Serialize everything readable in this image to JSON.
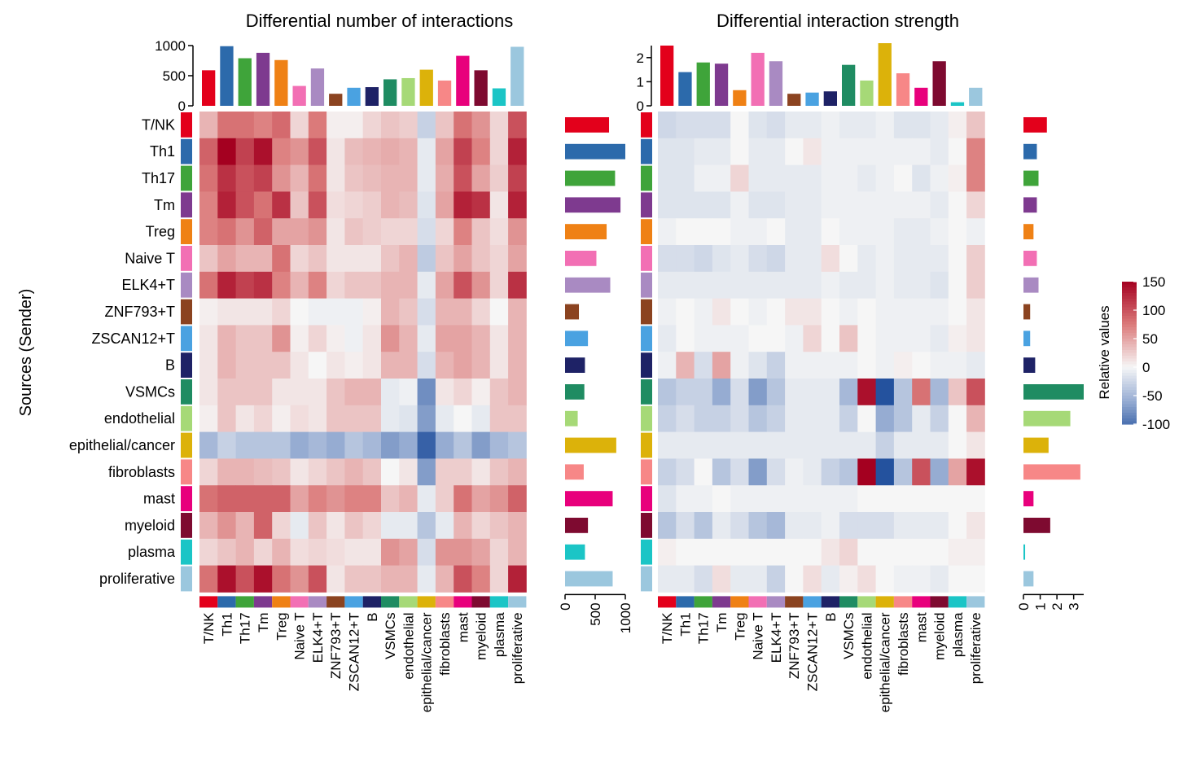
{
  "chart_data": [
    {
      "type": "heatmap",
      "title": "Differential number of interactions",
      "cell_types": [
        "T/NK",
        "Th1",
        "Th17",
        "Tm",
        "Treg",
        "Naive T",
        "ELK4+T",
        "ZNF793+T",
        "ZSCAN12+T",
        "B",
        "VSMCs",
        "endothelial",
        "epithelial/cancer",
        "fibroblasts",
        "mast",
        "myeloid",
        "plasma",
        "proliferative"
      ],
      "col_totals": [
        590,
        990,
        790,
        880,
        760,
        330,
        620,
        200,
        300,
        310,
        440,
        460,
        600,
        420,
        830,
        590,
        290,
        980
      ],
      "row_totals": [
        730,
        1000,
        830,
        920,
        690,
        520,
        750,
        230,
        380,
        330,
        320,
        210,
        850,
        310,
        790,
        380,
        330,
        790
      ],
      "top_axis_ticks": [
        "0",
        "500",
        "1000"
      ],
      "top_axis_max": 1000,
      "right_axis_ticks": [
        "0",
        "500",
        "1000"
      ],
      "right_axis_max": 1000,
      "values": [
        [
          40,
          80,
          80,
          70,
          85,
          20,
          75,
          5,
          5,
          20,
          30,
          25,
          -30,
          30,
          80,
          60,
          20,
          100
        ],
        [
          90,
          150,
          110,
          140,
          70,
          60,
          100,
          10,
          35,
          40,
          45,
          40,
          -10,
          50,
          110,
          70,
          20,
          130
        ],
        [
          80,
          120,
          100,
          110,
          60,
          40,
          80,
          10,
          30,
          35,
          40,
          40,
          -10,
          45,
          100,
          50,
          25,
          110
        ],
        [
          70,
          130,
          100,
          80,
          120,
          30,
          100,
          15,
          20,
          25,
          40,
          35,
          -15,
          50,
          130,
          120,
          10,
          130
        ],
        [
          70,
          80,
          60,
          90,
          50,
          50,
          60,
          10,
          30,
          25,
          20,
          20,
          -20,
          20,
          70,
          30,
          15,
          60
        ],
        [
          30,
          50,
          40,
          40,
          80,
          20,
          30,
          10,
          10,
          10,
          30,
          40,
          -35,
          30,
          50,
          30,
          20,
          50
        ],
        [
          80,
          130,
          110,
          120,
          70,
          40,
          70,
          20,
          30,
          30,
          40,
          40,
          -10,
          50,
          100,
          60,
          20,
          120
        ],
        [
          5,
          10,
          10,
          10,
          20,
          0,
          -5,
          -5,
          -5,
          5,
          40,
          30,
          -20,
          40,
          40,
          20,
          0,
          40
        ],
        [
          10,
          40,
          30,
          30,
          60,
          5,
          20,
          5,
          -5,
          10,
          60,
          40,
          -10,
          50,
          50,
          40,
          10,
          40
        ],
        [
          10,
          40,
          30,
          30,
          30,
          10,
          0,
          10,
          5,
          10,
          40,
          40,
          -20,
          40,
          50,
          40,
          10,
          40
        ],
        [
          10,
          30,
          30,
          30,
          10,
          10,
          10,
          30,
          40,
          40,
          -10,
          -5,
          -80,
          10,
          20,
          5,
          30,
          40
        ],
        [
          5,
          30,
          10,
          20,
          5,
          15,
          10,
          30,
          30,
          30,
          -10,
          -15,
          -70,
          -10,
          0,
          -10,
          30,
          30
        ],
        [
          -50,
          -30,
          -40,
          -40,
          -40,
          -60,
          -50,
          -60,
          -40,
          -50,
          -70,
          -60,
          -110,
          -60,
          -40,
          -70,
          -50,
          -40
        ],
        [
          20,
          40,
          40,
          35,
          30,
          10,
          20,
          30,
          40,
          30,
          0,
          10,
          -70,
          25,
          25,
          10,
          30,
          40
        ],
        [
          80,
          90,
          90,
          90,
          90,
          50,
          70,
          60,
          70,
          70,
          30,
          40,
          -10,
          25,
          80,
          50,
          60,
          90
        ],
        [
          40,
          60,
          40,
          90,
          20,
          -10,
          30,
          10,
          30,
          20,
          -10,
          -10,
          -40,
          -10,
          40,
          20,
          30,
          40
        ],
        [
          20,
          30,
          40,
          20,
          40,
          15,
          20,
          15,
          10,
          10,
          60,
          50,
          -20,
          60,
          60,
          50,
          20,
          40
        ],
        [
          80,
          140,
          100,
          140,
          80,
          60,
          100,
          10,
          30,
          30,
          40,
          40,
          -10,
          40,
          100,
          70,
          20,
          130
        ]
      ]
    },
    {
      "type": "heatmap",
      "title": "Differential interaction strength",
      "cell_types": [
        "T/NK",
        "Th1",
        "Th17",
        "Tm",
        "Treg",
        "Naive T",
        "ELK4+T",
        "ZNF793+T",
        "ZSCAN12+T",
        "B",
        "VSMCs",
        "endothelial",
        "epithelial/cancer",
        "fibroblasts",
        "mast",
        "myeloid",
        "plasma",
        "proliferative"
      ],
      "col_totals": [
        2.5,
        1.4,
        1.8,
        1.75,
        0.65,
        2.2,
        1.85,
        0.5,
        0.55,
        0.6,
        1.7,
        1.05,
        2.6,
        1.35,
        0.75,
        1.85,
        0.15,
        0.75
      ],
      "row_totals": [
        1.4,
        0.8,
        0.9,
        0.8,
        0.6,
        0.8,
        0.9,
        0.4,
        0.4,
        0.7,
        3.6,
        2.8,
        1.5,
        3.4,
        0.6,
        1.6,
        0.1,
        0.6
      ],
      "top_axis_ticks": [
        "0",
        "1",
        "2"
      ],
      "top_axis_max": 2.5,
      "right_axis_ticks": [
        "0",
        "1",
        "2",
        "3"
      ],
      "right_axis_max": 3.6,
      "values": [
        [
          -25,
          -20,
          -20,
          -20,
          0,
          -15,
          -20,
          -10,
          -10,
          -5,
          -10,
          -10,
          -5,
          -15,
          -15,
          -10,
          5,
          30
        ],
        [
          -15,
          -15,
          -10,
          -10,
          0,
          -10,
          -10,
          0,
          10,
          -5,
          -5,
          -5,
          -5,
          -5,
          -5,
          -10,
          0,
          70
        ],
        [
          -15,
          -15,
          -5,
          -5,
          20,
          -10,
          -10,
          -10,
          -10,
          -5,
          -5,
          -10,
          -5,
          0,
          -15,
          -5,
          5,
          70
        ],
        [
          -15,
          -15,
          -15,
          -15,
          -5,
          -15,
          -15,
          -10,
          -10,
          -5,
          -5,
          -5,
          -5,
          -5,
          -5,
          -10,
          0,
          20
        ],
        [
          -5,
          0,
          0,
          0,
          -5,
          -5,
          0,
          -10,
          -10,
          0,
          -5,
          -5,
          -5,
          -10,
          -10,
          -5,
          0,
          -5
        ],
        [
          -20,
          -20,
          -25,
          -15,
          -10,
          -20,
          -25,
          -10,
          -10,
          15,
          0,
          -10,
          -5,
          -10,
          -10,
          -10,
          0,
          25
        ],
        [
          -10,
          -10,
          -10,
          -10,
          -10,
          -10,
          -10,
          -10,
          -10,
          -5,
          -10,
          -10,
          -5,
          -10,
          -10,
          -15,
          0,
          25
        ],
        [
          -5,
          0,
          -5,
          10,
          0,
          -5,
          0,
          10,
          10,
          0,
          -5,
          0,
          -5,
          -5,
          -5,
          -5,
          0,
          10
        ],
        [
          -10,
          0,
          -5,
          -5,
          -5,
          0,
          0,
          -5,
          20,
          0,
          30,
          0,
          -5,
          -5,
          -5,
          -10,
          5,
          10
        ],
        [
          -5,
          40,
          -20,
          50,
          -5,
          -15,
          -30,
          -5,
          -5,
          -5,
          -5,
          0,
          -5,
          5,
          0,
          -5,
          -5,
          -10
        ],
        [
          -40,
          -30,
          -30,
          -60,
          -20,
          -70,
          -40,
          -10,
          -10,
          -10,
          -50,
          140,
          -120,
          -40,
          80,
          -50,
          30,
          100
        ],
        [
          -30,
          -20,
          -30,
          -30,
          -20,
          -40,
          -30,
          -10,
          -10,
          -10,
          -30,
          0,
          -60,
          -40,
          -10,
          -30,
          0,
          40
        ],
        [
          -10,
          -10,
          -10,
          -10,
          -10,
          -10,
          -10,
          -10,
          -10,
          -10,
          -10,
          -10,
          -30,
          -10,
          -10,
          -10,
          0,
          10
        ],
        [
          -30,
          -20,
          0,
          -40,
          -20,
          -70,
          -20,
          -5,
          -10,
          -30,
          -40,
          150,
          -130,
          -40,
          100,
          -60,
          50,
          140
        ],
        [
          -15,
          -5,
          -5,
          0,
          -5,
          -5,
          -5,
          -5,
          -5,
          -5,
          -5,
          0,
          0,
          0,
          0,
          0,
          0,
          0
        ],
        [
          -40,
          -20,
          -40,
          -10,
          -20,
          -40,
          -50,
          -10,
          -10,
          -5,
          -20,
          -20,
          -20,
          -10,
          -10,
          -10,
          0,
          10
        ],
        [
          5,
          0,
          0,
          0,
          0,
          0,
          0,
          0,
          0,
          10,
          20,
          0,
          0,
          0,
          0,
          0,
          5,
          5
        ],
        [
          -10,
          -10,
          -20,
          15,
          -10,
          -10,
          -30,
          0,
          15,
          -10,
          5,
          15,
          0,
          -5,
          -5,
          -10,
          0,
          0
        ]
      ]
    }
  ],
  "y_axis_label": "Sources (Sender)",
  "colors": [
    "#e3001b",
    "#2c6aab",
    "#3fa43a",
    "#7e3a8f",
    "#ef8115",
    "#f26fb4",
    "#a98ac2",
    "#8b4320",
    "#4aa2e1",
    "#1e2266",
    "#1f8c62",
    "#a6d977",
    "#dcb20a",
    "#f78787",
    "#e8007c",
    "#7e0a30",
    "#1bc5c6",
    "#9bc7de"
  ],
  "legend": {
    "title": "Relative values",
    "ticks": [
      "150",
      "100",
      "50",
      "0",
      "-50",
      "-100"
    ],
    "min": -100,
    "max": 150
  }
}
